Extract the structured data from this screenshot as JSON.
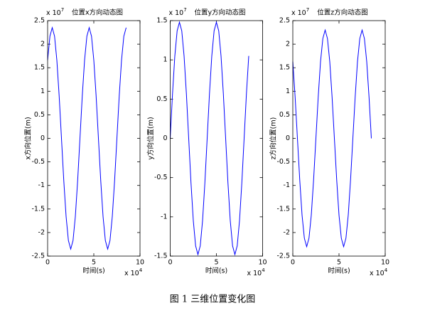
{
  "chart_data": [
    {
      "type": "line",
      "title": "位置x方向动态图",
      "x_label": "时间(s)",
      "y_label": "x方向位置(m)",
      "x_multiplier": {
        "base": "x 10",
        "exponent": "4"
      },
      "y_multiplier": {
        "base": "x 10",
        "exponent": "7"
      },
      "xlim": [
        0,
        10
      ],
      "xticks": [
        0,
        5,
        10
      ],
      "ylim": [
        -2.5,
        2.5
      ],
      "yticks": [
        -2.5,
        -2,
        -1.5,
        -1,
        -0.5,
        0,
        0.5,
        1,
        1.5,
        2,
        2.5
      ],
      "x": [
        0,
        0.25,
        0.5,
        0.75,
        1,
        1.25,
        1.5,
        1.75,
        2,
        2.25,
        2.5,
        2.75,
        3,
        3.25,
        3.5,
        3.75,
        4,
        4.25,
        4.5,
        4.75,
        5,
        5.25,
        5.5,
        5.75,
        6,
        6.25,
        6.5,
        6.75,
        7,
        7.25,
        7.5,
        7.75,
        8,
        8.25,
        8.5
      ],
      "series": [
        {
          "color": "#0000ff",
          "values": [
            1.66,
            2.17,
            2.35,
            2.17,
            1.66,
            0.9,
            0,
            -0.9,
            -1.66,
            -2.17,
            -2.35,
            -2.17,
            -1.66,
            -0.9,
            0,
            0.9,
            1.66,
            2.17,
            2.35,
            2.17,
            1.66,
            0.9,
            0,
            -0.9,
            -1.66,
            -2.17,
            -2.35,
            -2.17,
            -1.66,
            -0.9,
            0,
            0.9,
            1.66,
            2.17,
            2.35
          ]
        }
      ]
    },
    {
      "type": "line",
      "title": "位置y方向动态图",
      "x_label": "时间(s)",
      "y_label": "y方向位置(m)",
      "x_multiplier": {
        "base": "x 10",
        "exponent": "4"
      },
      "y_multiplier": {
        "base": "x 10",
        "exponent": "7"
      },
      "xlim": [
        0,
        10
      ],
      "xticks": [
        0,
        5,
        10
      ],
      "ylim": [
        -1.5,
        1.5
      ],
      "yticks": [
        -1.5,
        -1,
        -0.5,
        0,
        0.5,
        1,
        1.5
      ],
      "x": [
        0,
        0.25,
        0.5,
        0.75,
        1,
        1.25,
        1.5,
        1.75,
        2,
        2.25,
        2.5,
        2.75,
        3,
        3.25,
        3.5,
        3.75,
        4,
        4.25,
        4.5,
        4.75,
        5,
        5.25,
        5.5,
        5.75,
        6,
        6.25,
        6.5,
        6.75,
        7,
        7.25,
        7.5,
        7.75,
        8,
        8.25,
        8.5
      ],
      "series": [
        {
          "color": "#0000ff",
          "values": [
            0,
            0.57,
            1.05,
            1.37,
            1.48,
            1.37,
            1.05,
            0.57,
            0,
            -0.57,
            -1.05,
            -1.37,
            -1.48,
            -1.37,
            -1.05,
            -0.57,
            0,
            0.57,
            1.05,
            1.37,
            1.48,
            1.37,
            1.05,
            0.57,
            0,
            -0.57,
            -1.05,
            -1.37,
            -1.48,
            -1.37,
            -1.05,
            -0.57,
            0,
            0.57,
            1.05
          ]
        }
      ]
    },
    {
      "type": "line",
      "title": "位置z方向动态图",
      "x_label": "时间(s)",
      "y_label": "z方向位置(m)",
      "x_multiplier": {
        "base": "x 10",
        "exponent": "4"
      },
      "y_multiplier": {
        "base": "x 10",
        "exponent": "7"
      },
      "xlim": [
        0,
        10
      ],
      "xticks": [
        0,
        5,
        10
      ],
      "ylim": [
        -2.5,
        2.5
      ],
      "yticks": [
        -2.5,
        -2,
        -1.5,
        -1,
        -0.5,
        0,
        0.5,
        1,
        1.5,
        2,
        2.5
      ],
      "x": [
        0,
        0.25,
        0.5,
        0.75,
        1,
        1.25,
        1.5,
        1.75,
        2,
        2.25,
        2.5,
        2.75,
        3,
        3.25,
        3.5,
        3.75,
        4,
        4.25,
        4.5,
        4.75,
        5,
        5.25,
        5.5,
        5.75,
        6,
        6.25,
        6.5,
        6.75,
        7,
        7.25,
        7.5,
        7.75,
        8,
        8.25,
        8.5
      ],
      "series": [
        {
          "color": "#0000ff",
          "values": [
            1.63,
            0.88,
            0,
            -0.88,
            -1.63,
            -2.12,
            -2.3,
            -2.12,
            -1.63,
            -0.88,
            0,
            0.88,
            1.63,
            2.12,
            2.3,
            2.12,
            1.63,
            0.88,
            0,
            -0.88,
            -1.63,
            -2.12,
            -2.3,
            -2.12,
            -1.63,
            -0.88,
            0,
            0.88,
            1.63,
            2.12,
            2.3,
            2.12,
            1.63,
            0.88,
            0
          ]
        }
      ]
    }
  ],
  "caption": "图 1  三维位置变化图"
}
